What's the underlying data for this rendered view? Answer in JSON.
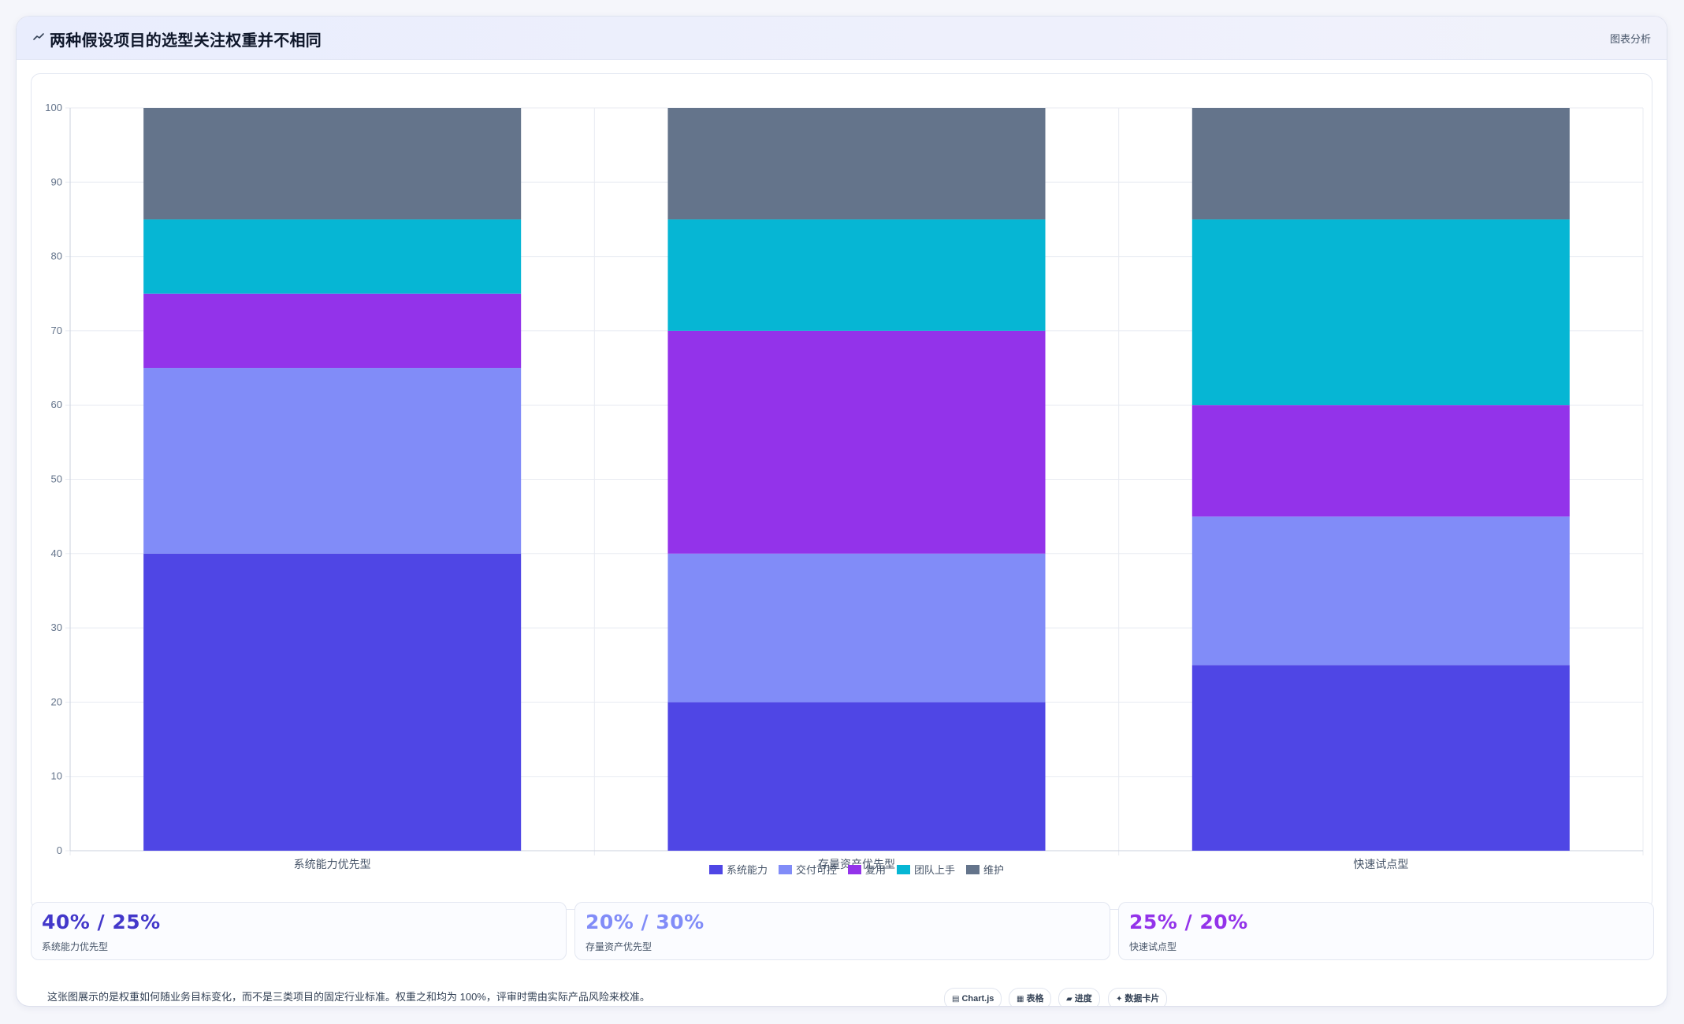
{
  "header": {
    "title": "两种假设项目的选型关注权重并不相同",
    "tag": "图表分析"
  },
  "colors": {
    "系统能力": "#4f46e5",
    "交付可控": "#818cf8",
    "复用": "#9333ea",
    "团队上手": "#06b6d4",
    "维护": "#64748b"
  },
  "chart_data": {
    "type": "bar",
    "stacked": true,
    "categories": [
      "系统能力优先型",
      "存量资产优先型",
      "快速试点型"
    ],
    "series": [
      {
        "name": "系统能力",
        "color": "#4f46e5",
        "values": [
          40,
          20,
          25
        ]
      },
      {
        "name": "交付可控",
        "color": "#818cf8",
        "values": [
          25,
          20,
          20
        ]
      },
      {
        "name": "复用",
        "color": "#9333ea",
        "values": [
          10,
          30,
          15
        ]
      },
      {
        "name": "团队上手",
        "color": "#06b6d4",
        "values": [
          10,
          15,
          25
        ]
      },
      {
        "name": "维护",
        "color": "#64748b",
        "values": [
          15,
          15,
          15
        ]
      }
    ],
    "ylim": [
      0,
      100
    ],
    "yticks": [
      0,
      10,
      20,
      30,
      40,
      50,
      60,
      70,
      80,
      90,
      100
    ],
    "grid": true,
    "legend_position": "bottom"
  },
  "stats": [
    {
      "value": "40% / 25%",
      "label": "系统能力优先型",
      "color": "#4338ca"
    },
    {
      "value": "20% / 30%",
      "label": "存量资产优先型",
      "color": "#818cf8"
    },
    {
      "value": "25% / 20%",
      "label": "快速试点型",
      "color": "#9333ea"
    }
  ],
  "footnote": "这张图展示的是权重如何随业务目标变化，而不是三类项目的固定行业标准。权重之和均为 100%，评审时需由实际产品风险来校准。",
  "chips": [
    {
      "icon": "chart-icon",
      "glyph": "▤",
      "label": "Chart.js"
    },
    {
      "icon": "table-icon",
      "glyph": "▦",
      "label": "表格"
    },
    {
      "icon": "progress-icon",
      "glyph": "▰",
      "label": "进度"
    },
    {
      "icon": "sparkle-icon",
      "glyph": "✦",
      "label": "数据卡片"
    }
  ]
}
